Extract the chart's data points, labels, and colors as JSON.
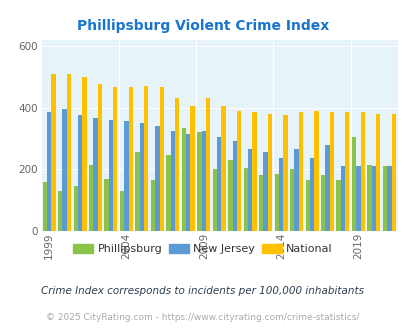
{
  "title": "Phillipsburg Violent Crime Index",
  "years": [
    1999,
    2000,
    2001,
    2002,
    2003,
    2004,
    2005,
    2006,
    2007,
    2008,
    2009,
    2010,
    2011,
    2012,
    2013,
    2014,
    2015,
    2016,
    2017,
    2018,
    2019,
    2020,
    2021
  ],
  "phillipsburg": [
    160,
    130,
    145,
    215,
    170,
    130,
    255,
    165,
    245,
    335,
    320,
    200,
    230,
    205,
    180,
    185,
    200,
    165,
    180,
    165,
    305,
    215,
    210
  ],
  "new_jersey": [
    385,
    395,
    375,
    365,
    360,
    355,
    350,
    340,
    325,
    315,
    325,
    305,
    290,
    265,
    255,
    235,
    265,
    235,
    280,
    210,
    210,
    210,
    210
  ],
  "national": [
    510,
    510,
    500,
    475,
    465,
    465,
    470,
    465,
    430,
    405,
    430,
    405,
    390,
    385,
    380,
    375,
    385,
    390,
    385,
    385,
    385,
    380,
    380
  ],
  "phillipsburg_color": "#8bc34a",
  "new_jersey_color": "#5b9bd5",
  "national_color": "#ffc000",
  "bg_color": "#e8f4f8",
  "plot_bg_color": "#e6f3f8",
  "ylim": [
    0,
    620
  ],
  "yticks": [
    0,
    200,
    400,
    600
  ],
  "legend_labels": [
    "Phillipsburg",
    "New Jersey",
    "National"
  ],
  "footnote": "Crime Index corresponds to incidents per 100,000 inhabitants",
  "copyright": "© 2025 CityRating.com - https://www.cityrating.com/crime-statistics/",
  "title_color": "#1874CD",
  "footnote_color": "#2c3e50",
  "copyright_color": "#aaaaaa",
  "tick_years": [
    1999,
    2004,
    2009,
    2014,
    2019
  ]
}
